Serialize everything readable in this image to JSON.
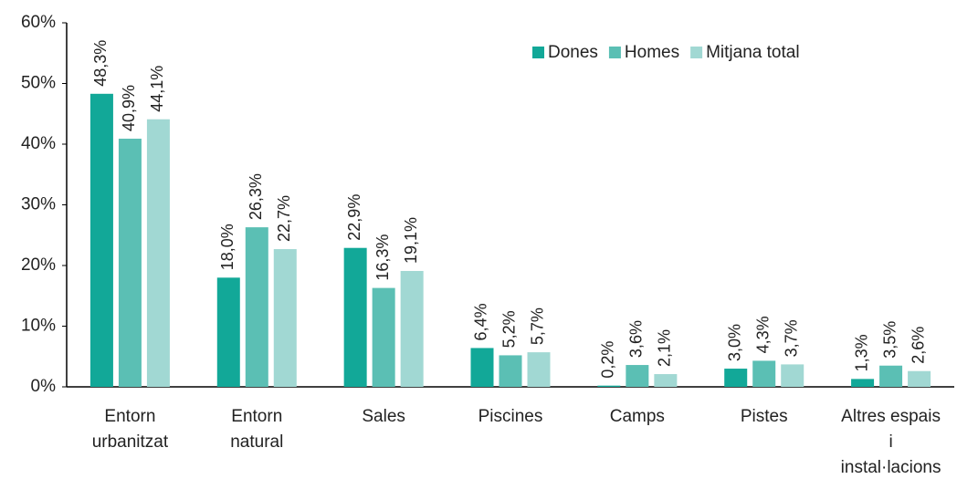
{
  "chart_data": {
    "type": "bar",
    "categories": [
      "Entorn\nurbanitzat",
      "Entorn\nnatural",
      "Sales",
      "Piscines",
      "Camps",
      "Pistes",
      "Altres espais\ni\ninstal·lacions"
    ],
    "series": [
      {
        "name": "Dones",
        "color": "#12a898",
        "values": [
          48.3,
          18.0,
          22.9,
          6.4,
          0.2,
          3.0,
          1.3
        ],
        "value_labels": [
          "48,3%",
          "18,0%",
          "22,9%",
          "6,4%",
          "0,2%",
          "3,0%",
          "1,3%"
        ]
      },
      {
        "name": "Homes",
        "color": "#5bbfb4",
        "values": [
          40.9,
          26.3,
          16.3,
          5.2,
          3.6,
          4.3,
          3.5
        ],
        "value_labels": [
          "40,9%",
          "26,3%",
          "16,3%",
          "5,2%",
          "3,6%",
          "4,3%",
          "3,5%"
        ]
      },
      {
        "name": "Mitjana total",
        "color": "#a1d8d3",
        "values": [
          44.1,
          22.7,
          19.1,
          5.7,
          2.1,
          3.7,
          2.6
        ],
        "value_labels": [
          "44,1%",
          "22,7%",
          "19,1%",
          "5,7%",
          "2,1%",
          "3,7%",
          "2,6%"
        ]
      }
    ],
    "ylim": [
      0,
      60
    ],
    "yticks": [
      {
        "value": 0,
        "label": "0%"
      },
      {
        "value": 10,
        "label": "10%"
      },
      {
        "value": 20,
        "label": "20%"
      },
      {
        "value": 30,
        "label": "30%"
      },
      {
        "value": 40,
        "label": "40%"
      },
      {
        "value": 50,
        "label": "50%"
      },
      {
        "value": 60,
        "label": "60%"
      }
    ],
    "grid": false,
    "legend": "top-right"
  }
}
